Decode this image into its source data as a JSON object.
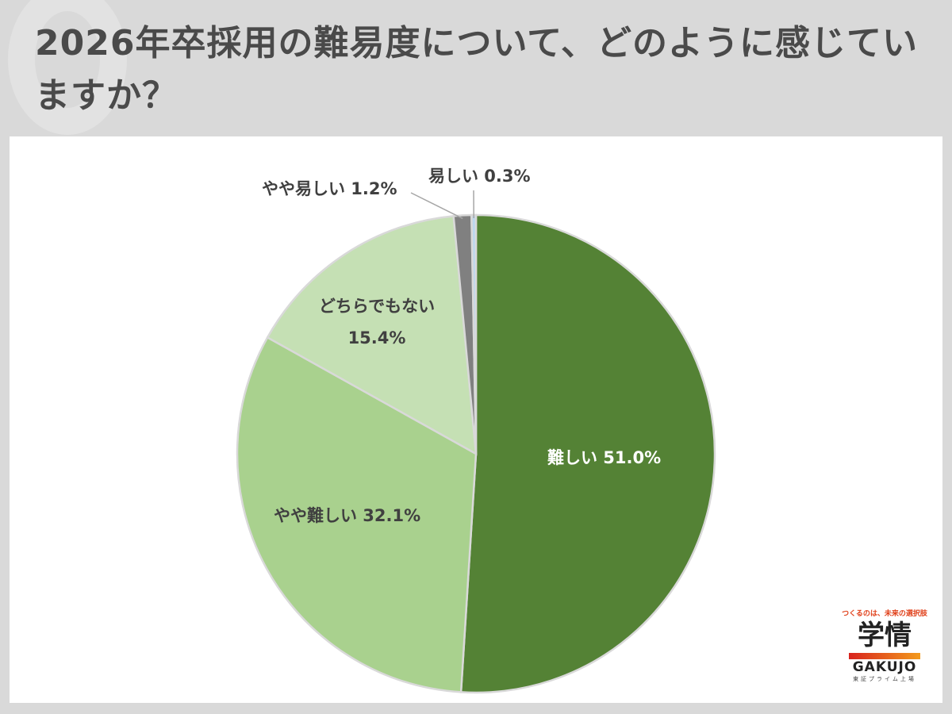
{
  "title": "2026年卒採用の難易度について、どのように感じていますか？",
  "chart_data": {
    "type": "pie",
    "title": "2026年卒採用の難易度について、どのように感じていますか？",
    "start_angle": "12 o'clock",
    "direction": "clockwise",
    "slices": [
      {
        "label": "難しい",
        "value": 51.0,
        "text": "難しい 51.0%",
        "color": "#548235"
      },
      {
        "label": "やや難しい",
        "value": 32.1,
        "text": "やや難しい 32.1%",
        "color": "#a9d18e"
      },
      {
        "label": "どちらでもない",
        "value": 15.4,
        "text": "15.4%",
        "color": "#c5e0b4"
      },
      {
        "label": "やや易しい",
        "value": 1.2,
        "text": "やや易しい 1.2%",
        "color": "#808080"
      },
      {
        "label": "易しい",
        "value": 0.3,
        "text": "易しい 0.3%",
        "color": "#bdd7ee"
      }
    ]
  },
  "logo": {
    "tagline": "つくるのは、未来の選択肢",
    "mark": "学情",
    "brand": "GAKUJO",
    "sub": "東証プライム上場"
  }
}
